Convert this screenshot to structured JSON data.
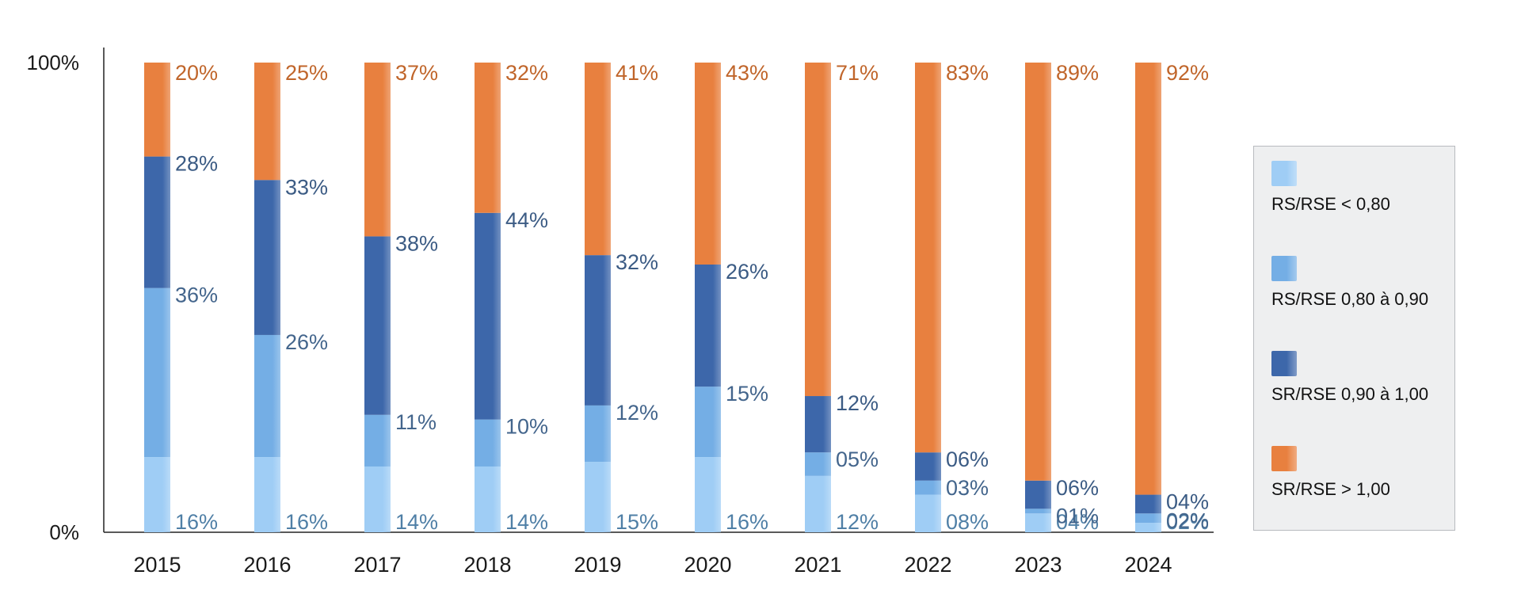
{
  "chart_data": {
    "type": "bar",
    "stacked": true,
    "title": "",
    "xlabel": "",
    "ylabel": "",
    "ylim": [
      0,
      100
    ],
    "yticks": [
      "0%",
      "100%"
    ],
    "categories": [
      "2015",
      "2016",
      "2017",
      "2018",
      "2019",
      "2020",
      "2021",
      "2022",
      "2023",
      "2024"
    ],
    "series": [
      {
        "name": "RS/RSE < 0,80",
        "color": "#9fcdf5",
        "labelColor": "#4f7fa6",
        "values": [
          16,
          16,
          14,
          14,
          15,
          16,
          12,
          8,
          4,
          2
        ],
        "labels": [
          "16%",
          "16%",
          "14%",
          "14%",
          "15%",
          "16%",
          "12%",
          "08%",
          "04%",
          "02%"
        ]
      },
      {
        "name": "RS/RSE 0,80 à 0,90",
        "color": "#74aee5",
        "labelColor": "#43658c",
        "values": [
          36,
          26,
          11,
          10,
          12,
          15,
          5,
          3,
          1,
          2
        ],
        "labels": [
          "36%",
          "26%",
          "11%",
          "10%",
          "12%",
          "15%",
          "05%",
          "03%",
          "01%",
          "02%"
        ]
      },
      {
        "name": "SR/RSE 0,90 à 1,00",
        "color": "#3d67aa",
        "labelColor": "#3b5b84",
        "values": [
          28,
          33,
          38,
          44,
          32,
          26,
          12,
          6,
          6,
          4
        ],
        "labels": [
          "28%",
          "33%",
          "38%",
          "44%",
          "32%",
          "26%",
          "12%",
          "06%",
          "06%",
          "04%"
        ]
      },
      {
        "name": "SR/RSE > 1,00",
        "color": "#e8803f",
        "labelColor": "#c0652a",
        "values": [
          20,
          25,
          37,
          32,
          41,
          43,
          71,
          83,
          89,
          92
        ],
        "labels": [
          "20%",
          "25%",
          "37%",
          "32%",
          "41%",
          "43%",
          "71%",
          "83%",
          "89%",
          "92%"
        ]
      }
    ],
    "legend_position": "right",
    "grid": false
  }
}
